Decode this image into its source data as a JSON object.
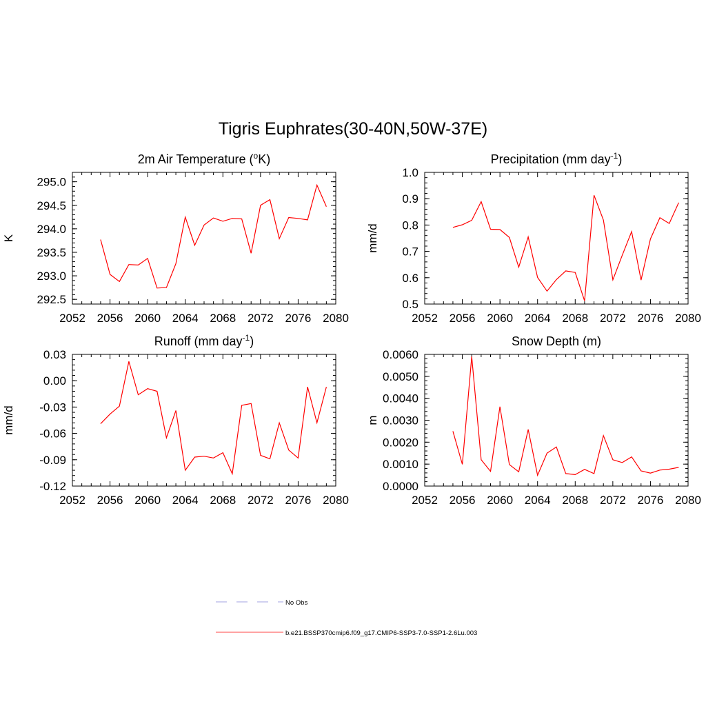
{
  "title": "Tigris Euphrates(30-40N,50W-37E)",
  "chart_data": [
    {
      "type": "line",
      "title_parts": [
        "2m Air Temperature (",
        "o",
        "K)"
      ],
      "ylabel": "K",
      "xlim": [
        2052,
        2080
      ],
      "ylim": [
        292.4,
        295.2
      ],
      "xticks": [
        "2052",
        "2056",
        "2060",
        "2064",
        "2068",
        "2072",
        "2076",
        "2080"
      ],
      "yticks": [
        "292.5",
        "293.0",
        "293.5",
        "294.0",
        "294.5",
        "295.0"
      ],
      "series": [
        {
          "color": "#ff0000",
          "x": [
            2055,
            2056,
            2057,
            2058,
            2059,
            2060,
            2061,
            2062,
            2063,
            2064,
            2065,
            2066,
            2067,
            2068,
            2069,
            2070,
            2071,
            2072,
            2073,
            2074,
            2075,
            2076,
            2077,
            2078,
            2079
          ],
          "y": [
            293.77,
            293.03,
            292.88,
            293.24,
            293.23,
            293.37,
            292.74,
            292.75,
            293.26,
            294.25,
            293.65,
            294.08,
            294.23,
            294.16,
            294.22,
            294.21,
            293.48,
            294.5,
            294.62,
            293.79,
            294.24,
            294.22,
            294.19,
            294.93,
            294.47
          ]
        }
      ]
    },
    {
      "type": "line",
      "title_parts": [
        "Precipitation (mm day",
        "-1",
        ")"
      ],
      "ylabel": "mm/d",
      "xlim": [
        2052,
        2080
      ],
      "ylim": [
        0.5,
        1.0
      ],
      "xticks": [
        "2052",
        "2056",
        "2060",
        "2064",
        "2068",
        "2072",
        "2076",
        "2080"
      ],
      "yticks": [
        "0.5",
        "0.6",
        "0.7",
        "0.8",
        "0.9",
        "1.0"
      ],
      "series": [
        {
          "color": "#ff0000",
          "x": [
            2055,
            2056,
            2057,
            2058,
            2059,
            2060,
            2061,
            2062,
            2063,
            2064,
            2065,
            2066,
            2067,
            2068,
            2069,
            2070,
            2071,
            2072,
            2073,
            2074,
            2075,
            2076,
            2077,
            2078,
            2079
          ],
          "y": [
            0.791,
            0.801,
            0.818,
            0.889,
            0.784,
            0.783,
            0.753,
            0.64,
            0.755,
            0.601,
            0.549,
            0.593,
            0.626,
            0.62,
            0.512,
            0.913,
            0.819,
            0.592,
            0.685,
            0.775,
            0.591,
            0.747,
            0.828,
            0.806,
            0.885
          ]
        }
      ]
    },
    {
      "type": "line",
      "title_parts": [
        "Runoff (mm day",
        "-1",
        ")"
      ],
      "ylabel": "mm/d",
      "xlim": [
        2052,
        2080
      ],
      "ylim": [
        -0.12,
        0.03
      ],
      "xticks": [
        "2052",
        "2056",
        "2060",
        "2064",
        "2068",
        "2072",
        "2076",
        "2080"
      ],
      "yticks": [
        "-0.12",
        "-0.09",
        "-0.06",
        "-0.03",
        "0.00",
        "0.03"
      ],
      "series": [
        {
          "color": "#ff0000",
          "x": [
            2055,
            2056,
            2057,
            2058,
            2059,
            2060,
            2061,
            2062,
            2063,
            2064,
            2065,
            2066,
            2067,
            2068,
            2069,
            2070,
            2071,
            2072,
            2073,
            2074,
            2075,
            2076,
            2077,
            2078,
            2079
          ],
          "y": [
            -0.049,
            -0.038,
            -0.029,
            0.022,
            -0.016,
            -0.009,
            -0.012,
            -0.065,
            -0.034,
            -0.102,
            -0.087,
            -0.086,
            -0.088,
            -0.082,
            -0.106,
            -0.028,
            -0.026,
            -0.085,
            -0.089,
            -0.048,
            -0.079,
            -0.088,
            -0.007,
            -0.048,
            -0.007
          ]
        }
      ]
    },
    {
      "type": "line",
      "title_parts": [
        "Snow Depth (m)",
        "",
        ""
      ],
      "ylabel": "m",
      "xlim": [
        2052,
        2080
      ],
      "ylim": [
        0.0,
        0.006
      ],
      "xticks": [
        "2052",
        "2056",
        "2060",
        "2064",
        "2068",
        "2072",
        "2076",
        "2080"
      ],
      "yticks": [
        "0.0000",
        "0.0010",
        "0.0020",
        "0.0030",
        "0.0040",
        "0.0050",
        "0.0060"
      ],
      "series": [
        {
          "color": "#ff0000",
          "x": [
            2055,
            2056,
            2057,
            2058,
            2059,
            2060,
            2061,
            2062,
            2063,
            2064,
            2065,
            2066,
            2067,
            2068,
            2069,
            2070,
            2071,
            2072,
            2073,
            2074,
            2075,
            2076,
            2077,
            2078,
            2079
          ],
          "y": [
            0.0025,
            0.00099,
            0.0059,
            0.0012,
            0.00067,
            0.00362,
            0.00098,
            0.00065,
            0.00258,
            0.00049,
            0.0015,
            0.00178,
            0.00057,
            0.00052,
            0.00076,
            0.00057,
            0.0023,
            0.0012,
            0.00107,
            0.00133,
            0.00069,
            0.00059,
            0.00073,
            0.00077,
            0.00085
          ]
        }
      ]
    }
  ],
  "legend": [
    {
      "label": "No Obs",
      "color": "#b4b4e6",
      "dash": true
    },
    {
      "label": "b.e21.BSSP370cmip6.f09_g17.CMIP6-SSP3-7.0-SSP1-2.6Lu.003",
      "color": "#ff6b6b",
      "dash": false
    }
  ]
}
